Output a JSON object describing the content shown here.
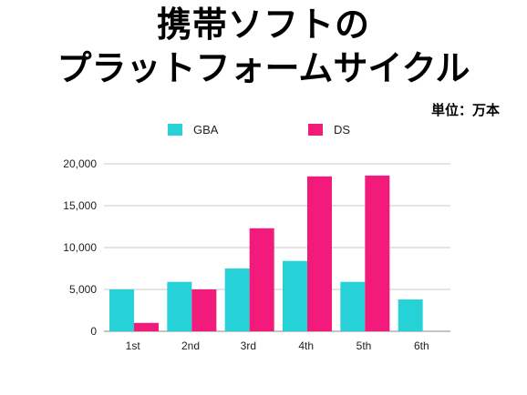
{
  "title": {
    "line1": "携帯ソフトの",
    "line2": "プラットフォームサイクル"
  },
  "unit_label": "単位：万本",
  "colors": {
    "GBA": "#26d2d8",
    "DS": "#f21a7a",
    "grid": "#c8c8c8",
    "axis": "#888888"
  },
  "chart_data": {
    "type": "bar",
    "categories": [
      "1st",
      "2nd",
      "3rd",
      "4th",
      "5th",
      "6th"
    ],
    "series": [
      {
        "name": "GBA",
        "values": [
          5000,
          5900,
          7500,
          8400,
          5900,
          3800
        ]
      },
      {
        "name": "DS",
        "values": [
          1000,
          5000,
          12300,
          18500,
          18600,
          null
        ]
      }
    ],
    "title": "携帯ソフトのプラットフォームサイクル",
    "ylim": [
      0,
      20000
    ],
    "yticks": [
      0,
      5000,
      10000,
      15000,
      20000
    ],
    "ytick_labels": [
      "0",
      "5,000",
      "10,000",
      "15,000",
      "20,000"
    ],
    "grid": true,
    "legend": "top-center"
  }
}
